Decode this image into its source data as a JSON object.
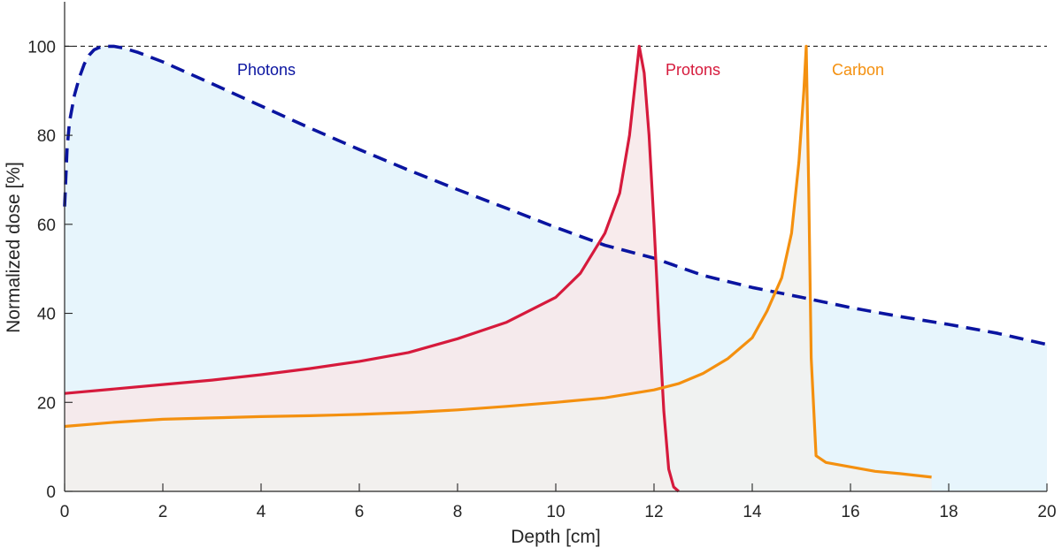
{
  "chart_data": {
    "type": "line",
    "title": "",
    "xlabel": "Depth [cm]",
    "ylabel": "Normalized dose [%]",
    "xlim": [
      0,
      20
    ],
    "ylim": [
      0,
      110
    ],
    "x_ticks": [
      0,
      2,
      4,
      6,
      8,
      10,
      12,
      14,
      16,
      18,
      20
    ],
    "y_ticks": [
      0,
      20,
      40,
      60,
      80,
      100
    ],
    "reference_line": 100,
    "grid": false,
    "series": [
      {
        "name": "Photons",
        "color": "#0a14a0",
        "fill": "#e3f3fb",
        "style": "dashed",
        "x": [
          0,
          0.05,
          0.1,
          0.2,
          0.3,
          0.4,
          0.5,
          0.6,
          0.7,
          0.8,
          0.9,
          1.0,
          1.2,
          1.5,
          2,
          3,
          4,
          5,
          6,
          7,
          8,
          9,
          10,
          11,
          12,
          13,
          14,
          15,
          16,
          17,
          18,
          19,
          20
        ],
        "values": [
          64,
          77,
          83,
          89,
          93,
          96,
          98,
          99.2,
          99.7,
          100,
          100,
          100,
          99.6,
          98.6,
          96.5,
          91.6,
          86.6,
          81.6,
          76.8,
          72.2,
          67.8,
          63.6,
          59.3,
          55.3,
          52.4,
          48.5,
          45.8,
          43.6,
          41.3,
          39.3,
          37.5,
          35.5,
          33
        ]
      },
      {
        "name": "Protons",
        "color": "#d61a3c",
        "fill": "#f7e8e9",
        "style": "solid",
        "x": [
          0,
          1,
          2,
          3,
          4,
          5,
          6,
          7,
          8,
          9,
          10,
          10.5,
          11,
          11.3,
          11.5,
          11.7,
          11.8,
          11.9,
          12,
          12.1,
          12.2,
          12.3,
          12.4,
          12.5
        ],
        "values": [
          22,
          23,
          24,
          25,
          26.2,
          27.6,
          29.2,
          31.2,
          34.3,
          38,
          43.6,
          49,
          58,
          67,
          80,
          100,
          94,
          80,
          60,
          38,
          18,
          5,
          1,
          0
        ]
      },
      {
        "name": "Carbon",
        "color": "#f4900f",
        "fill": "#f1f1ef",
        "style": "solid",
        "x": [
          0,
          1,
          2,
          3,
          4,
          5,
          6,
          7,
          8,
          9,
          10,
          11,
          12,
          12.5,
          13,
          13.5,
          14,
          14.3,
          14.6,
          14.8,
          14.95,
          15.05,
          15.1,
          15.15,
          15.2,
          15.3,
          15.5,
          16,
          16.5,
          17,
          17.65
        ],
        "values": [
          14.6,
          15.5,
          16.2,
          16.5,
          16.8,
          17.0,
          17.3,
          17.7,
          18.3,
          19.1,
          20.0,
          21.0,
          22.8,
          24.2,
          26.5,
          29.8,
          34.5,
          40.5,
          48.0,
          58.0,
          74.0,
          90.0,
          100,
          68,
          30,
          8.0,
          6.5,
          5.5,
          4.5,
          4.0,
          3.2
        ]
      }
    ]
  }
}
